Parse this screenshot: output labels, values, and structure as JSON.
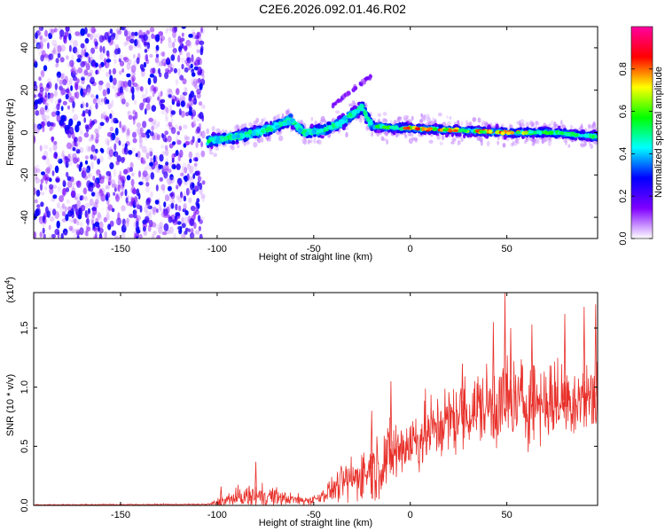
{
  "figure": {
    "title": "C2E6.2026.092.01.46.R02"
  },
  "chart_data": [
    {
      "type": "heatmap",
      "name": "spectrogram",
      "xlabel": "Height of straight line (km)",
      "ylabel": "Frequency (Hz)",
      "xlim": [
        -195,
        97
      ],
      "ylim": [
        -50,
        50
      ],
      "xticks": [
        -150,
        -100,
        -50,
        0,
        50
      ],
      "xtick_labels": [
        "-150",
        "-100",
        "-50",
        "0",
        "50"
      ],
      "yticks": [
        -40,
        -20,
        0,
        20,
        40
      ],
      "ytick_labels": [
        "-40",
        "-20",
        "0",
        "20",
        "40"
      ],
      "noise_region_x": [
        -195,
        -107
      ],
      "track": [
        {
          "x": -105,
          "y": -4
        },
        {
          "x": -90,
          "y": -2
        },
        {
          "x": -75,
          "y": 1
        },
        {
          "x": -62,
          "y": 6
        },
        {
          "x": -55,
          "y": 0
        },
        {
          "x": -45,
          "y": 1
        },
        {
          "x": -35,
          "y": 5
        },
        {
          "x": -25,
          "y": 12
        },
        {
          "x": -20,
          "y": 3
        },
        {
          "x": 0,
          "y": 2
        },
        {
          "x": 25,
          "y": 1
        },
        {
          "x": 50,
          "y": 0
        },
        {
          "x": 75,
          "y": 0
        },
        {
          "x": 97,
          "y": -2
        }
      ],
      "faint_streak": [
        {
          "x": -40,
          "y": 13
        },
        {
          "x": -28,
          "y": 20
        },
        {
          "x": -20,
          "y": 27
        }
      ],
      "colorbar": {
        "label": "Normalized spectral amplitude",
        "range": [
          0,
          1
        ],
        "ticks": [
          0.0,
          0.2,
          0.4,
          0.6,
          0.8
        ],
        "tick_labels": [
          "0.0",
          "0.2",
          "0.4",
          "0.6",
          "0.8"
        ],
        "colors": [
          "#ffffff",
          "#8000ff",
          "#0000ff",
          "#00ffff",
          "#00ff00",
          "#ffff00",
          "#ff0000",
          "#ff00a0"
        ]
      }
    },
    {
      "type": "line",
      "name": "snr",
      "xlabel": "Height of straight line (km)",
      "ylabel": "SNR (10 * v/v)",
      "scale_label": "(x10",
      "scale_exp": "4",
      "scale_close": ")",
      "xlim": [
        -195,
        97
      ],
      "ylim": [
        0,
        1.8
      ],
      "xticks": [
        -150,
        -100,
        -50,
        0,
        50
      ],
      "xtick_labels": [
        "-150",
        "-100",
        "-50",
        "0",
        "50"
      ],
      "yticks": [
        0.0,
        0.5,
        1.0,
        1.5
      ],
      "ytick_labels": [
        "0.0",
        "0.5",
        "1.0",
        "1.5"
      ],
      "color": "#e8302a",
      "envelope": {
        "x": [
          -195,
          -105,
          -100,
          -95,
          -85,
          -75,
          -65,
          -55,
          -50,
          -45,
          -40,
          -35,
          -30,
          -25,
          -20,
          -15,
          -10,
          -5,
          0,
          10,
          20,
          30,
          40,
          50,
          60,
          70,
          80,
          90,
          97
        ],
        "base": [
          0.005,
          0.008,
          0.02,
          0.04,
          0.07,
          0.08,
          0.06,
          0.04,
          0.05,
          0.09,
          0.14,
          0.19,
          0.22,
          0.27,
          0.31,
          0.35,
          0.43,
          0.48,
          0.53,
          0.62,
          0.72,
          0.79,
          0.84,
          0.86,
          0.88,
          0.88,
          0.89,
          0.91,
          0.92
        ],
        "amp": [
          0.006,
          0.01,
          0.05,
          0.09,
          0.13,
          0.13,
          0.08,
          0.05,
          0.06,
          0.09,
          0.14,
          0.2,
          0.25,
          0.3,
          0.34,
          0.36,
          0.38,
          0.38,
          0.38,
          0.38,
          0.38,
          0.4,
          0.45,
          0.52,
          0.48,
          0.45,
          0.44,
          0.43,
          0.43
        ]
      },
      "peaks": [
        {
          "x": -98,
          "y": 0.16
        },
        {
          "x": -80,
          "y": 0.37
        },
        {
          "x": -20,
          "y": 0.8
        },
        {
          "x": -10,
          "y": 1.05
        },
        {
          "x": 27,
          "y": 1.2
        },
        {
          "x": 36,
          "y": 1.02
        },
        {
          "x": 43,
          "y": 1.55
        },
        {
          "x": 49,
          "y": 1.8
        },
        {
          "x": 52,
          "y": 1.5
        },
        {
          "x": 63,
          "y": 1.53
        },
        {
          "x": 80,
          "y": 1.62
        },
        {
          "x": 90,
          "y": 1.68
        },
        {
          "x": 96,
          "y": 1.7
        }
      ]
    }
  ]
}
